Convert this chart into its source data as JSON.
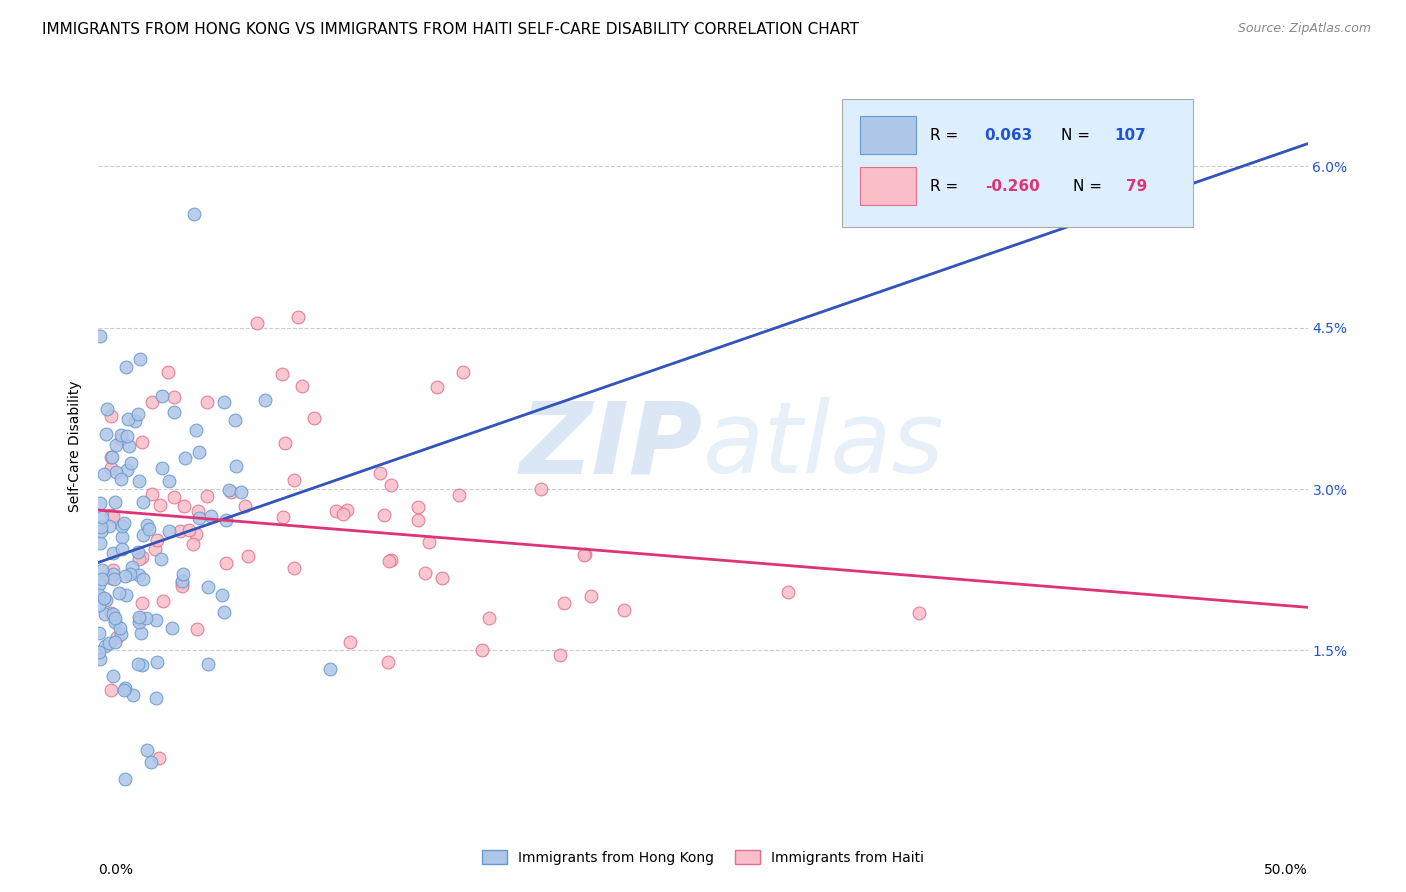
{
  "title": "IMMIGRANTS FROM HONG KONG VS IMMIGRANTS FROM HAITI SELF-CARE DISABILITY CORRELATION CHART",
  "source": "Source: ZipAtlas.com",
  "ylabel": "Self-Care Disability",
  "ytick_values": [
    0.015,
    0.03,
    0.045,
    0.06
  ],
  "ytick_labels": [
    "1.5%",
    "3.0%",
    "4.5%",
    "6.0%"
  ],
  "xlim": [
    0.0,
    0.5
  ],
  "ylim": [
    0.0,
    0.068
  ],
  "hk_R": 0.063,
  "hk_N": 107,
  "haiti_R": -0.26,
  "haiti_N": 79,
  "hk_color": "#aec6e8",
  "hk_edge_color": "#6699cc",
  "haiti_color": "#f9bec8",
  "haiti_edge_color": "#e07090",
  "hk_line_color": "#3355bb",
  "haiti_line_color": "#dd3377",
  "trend_line_color": "#aaaaaa",
  "watermark_color": "#c5d8ef",
  "title_fontsize": 11,
  "legend_fontsize": 11,
  "hk_seed": 12,
  "haiti_seed": 55
}
